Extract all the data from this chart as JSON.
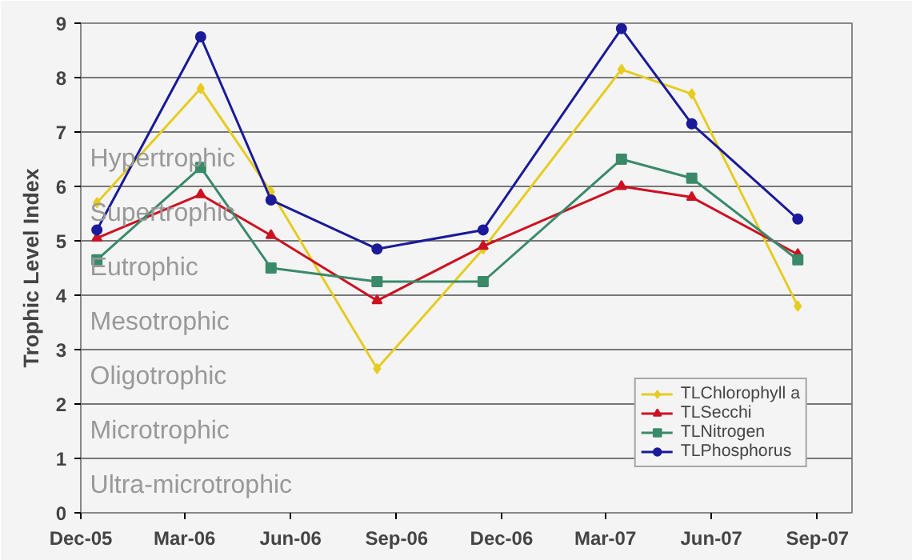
{
  "chart_data": {
    "type": "line",
    "ylabel": "Trophic Level Index",
    "x": [
      "2005-12-15",
      "2006-03-15",
      "2006-05-15",
      "2006-08-15",
      "2006-11-15",
      "2007-03-15",
      "2007-05-15",
      "2007-08-15"
    ],
    "series": [
      {
        "name": "TLChlorophyll a",
        "color": "#e6cc22",
        "marker": "diamond",
        "values": [
          5.7,
          7.8,
          5.9,
          2.65,
          4.85,
          8.15,
          7.7,
          3.8
        ]
      },
      {
        "name": "TLSecchi",
        "color": "#cc1122",
        "marker": "triangle",
        "values": [
          5.05,
          5.85,
          5.1,
          3.9,
          4.9,
          6.0,
          5.8,
          4.75
        ]
      },
      {
        "name": "TLNitrogen",
        "color": "#3a8a6a",
        "marker": "square",
        "values": [
          4.65,
          6.35,
          4.5,
          4.25,
          4.25,
          6.5,
          6.15,
          4.65
        ]
      },
      {
        "name": "TLPhosphorus",
        "color": "#1a1a9a",
        "marker": "circle",
        "values": [
          5.2,
          8.75,
          5.75,
          4.85,
          5.2,
          8.9,
          7.15,
          5.4
        ]
      }
    ],
    "xlim": [
      "2005-12-01",
      "2007-10-01"
    ],
    "xticks": [
      {
        "value": "2005-12-01",
        "label": "Dec-05"
      },
      {
        "value": "2006-03-01",
        "label": "Mar-06"
      },
      {
        "value": "2006-06-01",
        "label": "Jun-06"
      },
      {
        "value": "2006-09-01",
        "label": "Sep-06"
      },
      {
        "value": "2006-12-01",
        "label": "Dec-06"
      },
      {
        "value": "2007-03-01",
        "label": "Mar-07"
      },
      {
        "value": "2007-06-01",
        "label": "Jun-07"
      },
      {
        "value": "2007-09-01",
        "label": "Sep-07"
      }
    ],
    "ylim": [
      0,
      9
    ],
    "yticks": [
      0,
      1,
      2,
      3,
      4,
      5,
      6,
      7,
      8,
      9
    ],
    "grid": "y",
    "legend": "bottom right",
    "line_style": "solid",
    "annotations": [
      "Hypertrophic",
      "Supertrophic",
      "Eutrophic",
      "Mesotrophic",
      "Oligotrophic",
      "Microtrophic",
      "Ultra-microtrophic"
    ]
  }
}
